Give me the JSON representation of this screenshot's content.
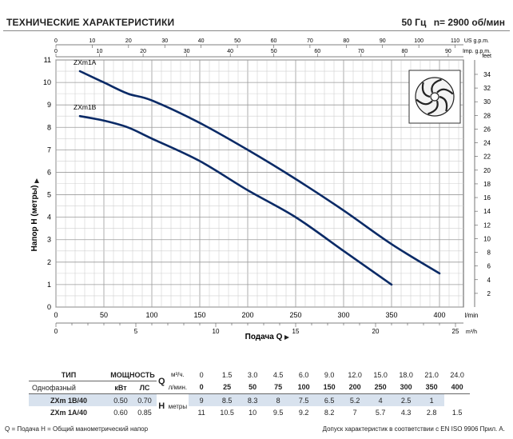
{
  "header": {
    "title": "ТЕХНИЧЕСКИЕ ХАРАКТЕРИСТИКИ",
    "frequency": "50 Гц",
    "speed": "n= 2900 об/мин"
  },
  "chart_data": {
    "type": "line",
    "x_main": {
      "label": "l/min",
      "range": [
        0,
        425
      ],
      "ticks": [
        0,
        50,
        100,
        150,
        200,
        250,
        300,
        350,
        400
      ]
    },
    "x_m3h": {
      "label": "m³/h",
      "range": [
        0,
        25.5
      ],
      "ticks": [
        0,
        5,
        10,
        15,
        20,
        25
      ],
      "minor_step": 1
    },
    "x_usgpm": {
      "label": "US g.p.m.",
      "range": [
        0,
        112.3
      ],
      "ticks": [
        0,
        10,
        20,
        30,
        40,
        50,
        60,
        70,
        80,
        90,
        100,
        110
      ]
    },
    "x_impgpm": {
      "label": "Imp. g.p.m.",
      "range": [
        0,
        93.5
      ],
      "ticks": [
        0,
        10,
        20,
        30,
        40,
        50,
        60,
        70,
        80,
        90
      ]
    },
    "y_left": {
      "label": "Напор H (метры)",
      "range": [
        0,
        11
      ],
      "ticks": [
        0,
        1,
        2,
        3,
        4,
        5,
        6,
        7,
        8,
        9,
        10,
        11
      ]
    },
    "y_right": {
      "label": "feet",
      "range": [
        0,
        36.1
      ],
      "ticks": [
        2,
        4,
        6,
        8,
        10,
        12,
        14,
        16,
        18,
        20,
        22,
        24,
        26,
        28,
        30,
        32,
        34
      ]
    },
    "xlabel": "Подача Q",
    "grid": true,
    "series": [
      {
        "name": "ZXm1A",
        "x": [
          25,
          50,
          75,
          100,
          150,
          200,
          250,
          300,
          350,
          400
        ],
        "y": [
          10.5,
          10,
          9.5,
          9.2,
          8.2,
          7,
          5.7,
          4.3,
          2.8,
          1.5
        ],
        "color": "#0a2a66"
      },
      {
        "name": "ZXm1B",
        "x": [
          25,
          50,
          75,
          100,
          150,
          200,
          250,
          300,
          350
        ],
        "y": [
          8.5,
          8.3,
          8,
          7.5,
          6.5,
          5.2,
          4,
          2.5,
          1
        ],
        "color": "#0a2a66"
      }
    ]
  },
  "table": {
    "col_type": "ТИП",
    "col_power": "МОЩНОСТЬ",
    "sub_type": "Однофазный",
    "unit_kw": "кВт",
    "unit_hp": "ЛС",
    "q_symbol": "Q",
    "q_unit_m3h": "м³/ч.",
    "q_unit_lmin": "л/мин.",
    "h_symbol": "H",
    "h_unit": "метры",
    "flow_m3h": [
      "0",
      "1.5",
      "3.0",
      "4.5",
      "6.0",
      "9.0",
      "12.0",
      "15.0",
      "18.0",
      "21.0",
      "24.0"
    ],
    "flow_lmin": [
      "0",
      "25",
      "50",
      "75",
      "100",
      "150",
      "200",
      "250",
      "300",
      "350",
      "400"
    ],
    "rows": [
      {
        "model": "ZXm 1B/40",
        "kw": "0.50",
        "hp": "0.70",
        "heads": [
          "9",
          "8.5",
          "8.3",
          "8",
          "7.5",
          "6.5",
          "5.2",
          "4",
          "2.5",
          "1",
          ""
        ]
      },
      {
        "model": "ZXm 1A/40",
        "kw": "0.60",
        "hp": "0.85",
        "heads": [
          "11",
          "10.5",
          "10",
          "9.5",
          "9.2",
          "8.2",
          "7",
          "5.7",
          "4.3",
          "2.8",
          "1.5"
        ]
      }
    ]
  },
  "footer": {
    "legend": "Q = Подача  H = Общий манометрический напор",
    "note": "Допуск характеристик в соответствии с EN ISO 9906 Прил. А."
  }
}
